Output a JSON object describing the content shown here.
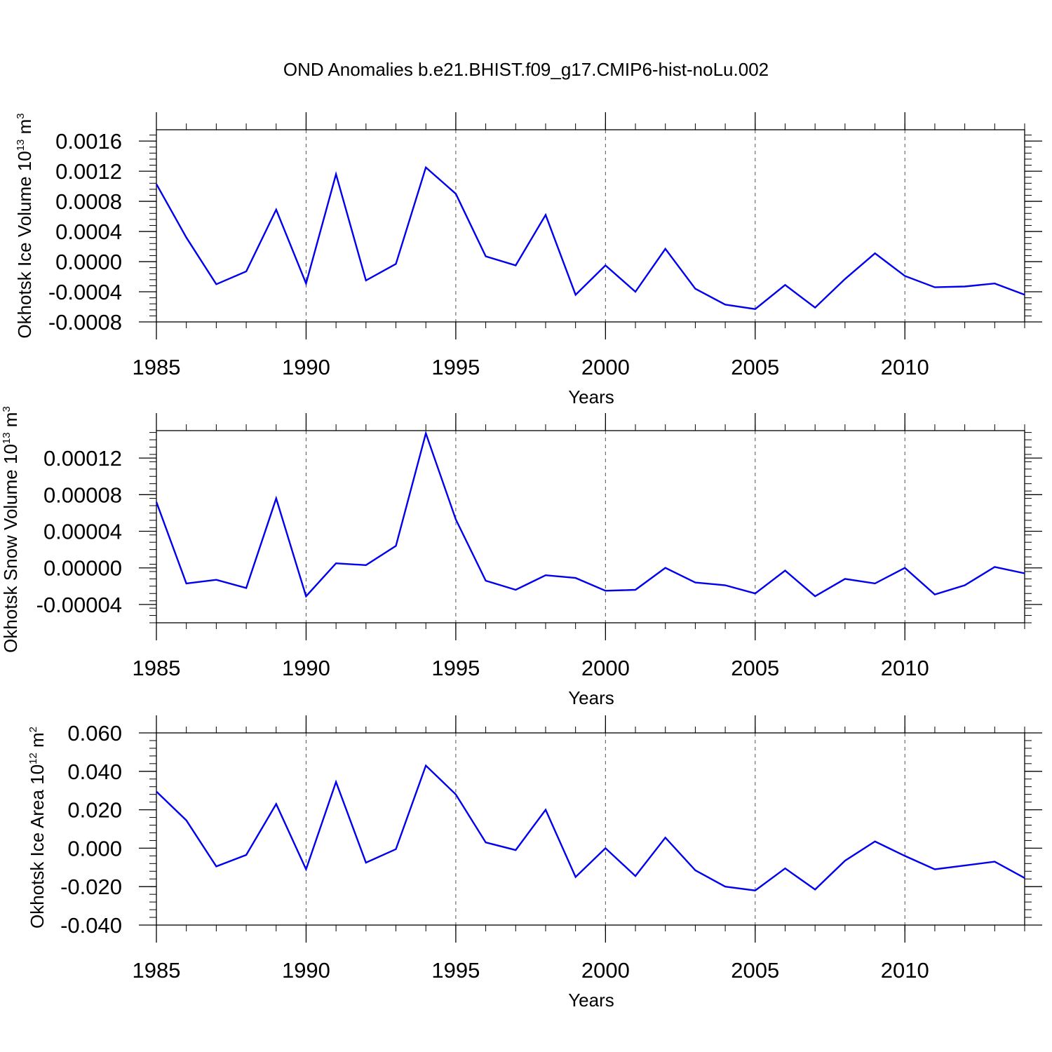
{
  "title": "OND Anomalies b.e21.BHIST.f09_g17.CMIP6-hist-noLu.002",
  "colors": {
    "line": "#0000ee",
    "axis": "#000000",
    "grid": "#555555"
  },
  "chart_data": [
    {
      "type": "line",
      "xlabel": "Years",
      "ylabel_text": "Okhotsk Ice Volume 10",
      "ylabel_exponent": "13",
      "ylabel_unit": " m",
      "ylabel_unit_exponent": "3",
      "xlim": [
        1985,
        2014
      ],
      "ylim": [
        -0.0008,
        0.00175
      ],
      "xticks": [
        1985,
        1990,
        1995,
        2000,
        2005,
        2010
      ],
      "xtick_labels": [
        "1985",
        "1990",
        "1995",
        "2000",
        "2005",
        "2010"
      ],
      "yticks": [
        -0.0008,
        -0.0004,
        0.0,
        0.0004,
        0.0008,
        0.0012,
        0.0016
      ],
      "ytick_labels": [
        "-0.0008",
        "-0.0004",
        "0.0000",
        "0.0004",
        "0.0008",
        "0.0012",
        "0.0016"
      ],
      "grid_x": true,
      "x": [
        1985,
        1986,
        1987,
        1988,
        1989,
        1990,
        1991,
        1992,
        1993,
        1994,
        1995,
        1996,
        1997,
        1998,
        1999,
        2000,
        2001,
        2002,
        2003,
        2004,
        2005,
        2006,
        2007,
        2008,
        2009,
        2010,
        2011,
        2012,
        2013,
        2014
      ],
      "values": [
        0.00103,
        0.00032,
        -0.0003,
        -0.00013,
        0.00069,
        -0.00029,
        0.00116,
        -0.00025,
        -3e-05,
        0.00125,
        0.0009,
        7e-05,
        -5e-05,
        0.00062,
        -0.00044,
        -5e-05,
        -0.0004,
        0.00017,
        -0.00036,
        -0.00057,
        -0.00063,
        -0.00031,
        -0.00061,
        -0.00023,
        0.00011,
        -0.00019,
        -0.00034,
        -0.00033,
        -0.00029,
        -0.00044
      ]
    },
    {
      "type": "line",
      "xlabel": "Years",
      "ylabel_text": "Okhotsk Snow Volume 10",
      "ylabel_exponent": "13",
      "ylabel_unit": " m",
      "ylabel_unit_exponent": "3",
      "xlim": [
        1985,
        2014
      ],
      "ylim": [
        -6e-05,
        0.00015
      ],
      "xticks": [
        1985,
        1990,
        1995,
        2000,
        2005,
        2010
      ],
      "xtick_labels": [
        "1985",
        "1990",
        "1995",
        "2000",
        "2005",
        "2010"
      ],
      "yticks": [
        -4e-05,
        0.0,
        4e-05,
        8e-05,
        0.00012
      ],
      "ytick_labels": [
        "-0.00004",
        "0.00000",
        "0.00004",
        "0.00008",
        "0.00012"
      ],
      "grid_x": true,
      "x": [
        1985,
        1986,
        1987,
        1988,
        1989,
        1990,
        1991,
        1992,
        1993,
        1994,
        1995,
        1996,
        1997,
        1998,
        1999,
        2000,
        2001,
        2002,
        2003,
        2004,
        2005,
        2006,
        2007,
        2008,
        2009,
        2010,
        2011,
        2012,
        2013,
        2014
      ],
      "values": [
        7.2e-05,
        -1.7e-05,
        -1.3e-05,
        -2.2e-05,
        7.6e-05,
        -3.1e-05,
        5e-06,
        3e-06,
        2.4e-05,
        0.000147,
        5.3e-05,
        -1.4e-05,
        -2.4e-05,
        -8e-06,
        -1.1e-05,
        -2.5e-05,
        -2.4e-05,
        0.0,
        -1.6e-05,
        -1.9e-05,
        -2.8e-05,
        -3e-06,
        -3.1e-05,
        -1.2e-05,
        -1.7e-05,
        0.0,
        -2.9e-05,
        -1.9e-05,
        1e-06,
        -6e-06
      ]
    },
    {
      "type": "line",
      "xlabel": "Years",
      "ylabel_text": "Okhotsk Ice Area 10",
      "ylabel_exponent": "12",
      "ylabel_unit": " m",
      "ylabel_unit_exponent": "2",
      "xlim": [
        1985,
        2014
      ],
      "ylim": [
        -0.04,
        0.06
      ],
      "xticks": [
        1985,
        1990,
        1995,
        2000,
        2005,
        2010
      ],
      "xtick_labels": [
        "1985",
        "1990",
        "1995",
        "2000",
        "2005",
        "2010"
      ],
      "yticks": [
        -0.04,
        -0.02,
        0.0,
        0.02,
        0.04,
        0.06
      ],
      "ytick_labels": [
        "-0.040",
        "-0.020",
        "0.000",
        "0.020",
        "0.040",
        "0.060"
      ],
      "grid_x": true,
      "x": [
        1985,
        1986,
        1987,
        1988,
        1989,
        1990,
        1991,
        1992,
        1993,
        1994,
        1995,
        1996,
        1997,
        1998,
        1999,
        2000,
        2001,
        2002,
        2003,
        2004,
        2005,
        2006,
        2007,
        2008,
        2009,
        2010,
        2011,
        2012,
        2013,
        2014
      ],
      "values": [
        0.0295,
        0.0145,
        -0.0095,
        -0.0035,
        0.023,
        -0.011,
        0.0345,
        -0.0075,
        -0.0005,
        0.043,
        0.028,
        0.003,
        -0.001,
        0.02,
        -0.015,
        0.0,
        -0.0145,
        0.0055,
        -0.0115,
        -0.02,
        -0.022,
        -0.0105,
        -0.0215,
        -0.0065,
        0.0035,
        -0.004,
        -0.011,
        -0.009,
        -0.007,
        -0.0155
      ]
    }
  ]
}
